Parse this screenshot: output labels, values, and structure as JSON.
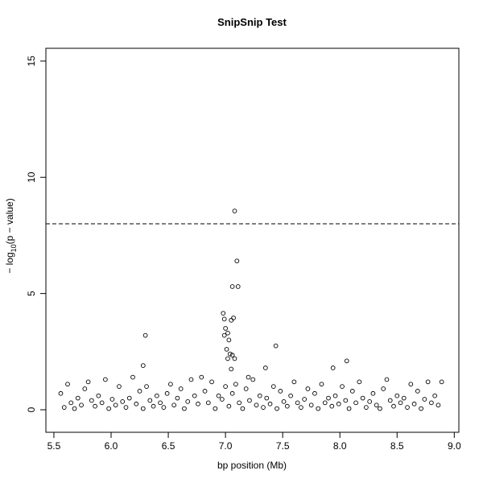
{
  "chart_data": {
    "type": "scatter",
    "title": "SnipSnip Test",
    "xlabel": "bp position (Mb)",
    "ylabel": [
      "− log",
      "10",
      "(p − value)"
    ],
    "x": [
      5.56,
      5.59,
      5.62,
      5.65,
      5.68,
      5.71,
      5.74,
      5.77,
      5.8,
      5.83,
      5.86,
      5.89,
      5.92,
      5.95,
      5.98,
      6.01,
      6.04,
      6.07,
      6.1,
      6.13,
      6.16,
      6.19,
      6.22,
      6.25,
      6.28,
      6.31,
      6.34,
      6.37,
      6.4,
      6.43,
      6.46,
      6.49,
      6.52,
      6.55,
      6.58,
      6.61,
      6.64,
      6.67,
      6.7,
      6.73,
      6.76,
      6.79,
      6.82,
      6.85,
      6.88,
      6.91,
      6.94,
      6.97,
      7.0,
      7.03,
      7.06,
      7.09,
      7.12,
      7.15,
      7.18,
      7.21,
      7.24,
      7.27,
      7.3,
      7.33,
      7.36,
      7.39,
      7.42,
      7.45,
      7.48,
      7.51,
      7.54,
      7.57,
      7.6,
      7.63,
      7.66,
      7.69,
      7.72,
      7.75,
      7.78,
      7.81,
      7.84,
      7.87,
      7.9,
      7.93,
      7.96,
      7.99,
      8.02,
      8.05,
      8.08,
      8.11,
      8.14,
      8.17,
      8.2,
      8.23,
      8.26,
      8.29,
      8.32,
      8.35,
      8.38,
      8.41,
      8.44,
      8.47,
      8.5,
      8.53,
      8.56,
      8.59,
      8.62,
      8.65,
      8.68,
      8.71,
      8.74,
      8.77,
      8.8,
      8.83,
      8.86,
      8.89,
      7.08,
      7.1,
      7.06,
      7.11,
      6.98,
      6.99,
      7.05,
      7.07,
      6.3,
      7.44,
      7.0,
      7.02,
      7.03,
      6.99,
      7.01,
      7.04,
      7.06,
      7.02,
      7.08,
      6.28,
      8.06,
      7.94,
      7.35,
      7.05,
      7.2
    ],
    "values": [
      0.7,
      0.1,
      1.1,
      0.3,
      0.05,
      0.5,
      0.2,
      0.9,
      1.2,
      0.4,
      0.15,
      0.6,
      0.3,
      1.3,
      0.05,
      0.45,
      0.2,
      1.0,
      0.35,
      0.1,
      0.5,
      1.4,
      0.25,
      0.8,
      0.05,
      1.0,
      0.4,
      0.15,
      0.6,
      0.3,
      0.1,
      0.7,
      1.1,
      0.2,
      0.5,
      0.9,
      0.05,
      0.35,
      1.3,
      0.6,
      0.25,
      1.4,
      0.8,
      0.3,
      1.2,
      0.05,
      0.6,
      0.45,
      1.0,
      0.15,
      0.7,
      1.1,
      0.3,
      0.05,
      0.9,
      0.4,
      1.3,
      0.2,
      0.6,
      0.1,
      0.5,
      0.25,
      1.0,
      0.05,
      0.8,
      0.35,
      0.15,
      0.6,
      1.2,
      0.3,
      0.1,
      0.45,
      0.9,
      0.2,
      0.7,
      0.05,
      1.1,
      0.3,
      0.5,
      0.15,
      0.6,
      0.25,
      1.0,
      0.4,
      0.05,
      0.8,
      0.3,
      1.2,
      0.5,
      0.1,
      0.35,
      0.7,
      0.2,
      0.05,
      0.9,
      1.3,
      0.4,
      0.15,
      0.6,
      0.3,
      0.5,
      0.1,
      1.1,
      0.25,
      0.8,
      0.05,
      0.45,
      1.2,
      0.3,
      0.6,
      0.2,
      1.2,
      8.55,
      6.4,
      5.3,
      5.3,
      4.15,
      3.9,
      3.85,
      3.95,
      3.2,
      2.75,
      3.5,
      3.3,
      3.0,
      3.2,
      2.6,
      2.4,
      2.35,
      2.2,
      2.2,
      1.9,
      2.1,
      1.8,
      1.8,
      1.75,
      1.4
    ],
    "color": "#000000",
    "hline": 8,
    "xlim": [
      5.43,
      9.04
    ],
    "ylim": [
      -0.97,
      15.55
    ],
    "xticks": [
      5.5,
      {
        "value": 6,
        "label": "6.0"
      },
      6.5,
      {
        "value": 7,
        "label": "7.0"
      },
      7.5,
      {
        "value": 8,
        "label": "8.0"
      },
      8.5,
      {
        "value": 9,
        "label": "9.0"
      }
    ],
    "yticks": [
      0,
      5,
      10,
      15
    ],
    "grid": false
  }
}
